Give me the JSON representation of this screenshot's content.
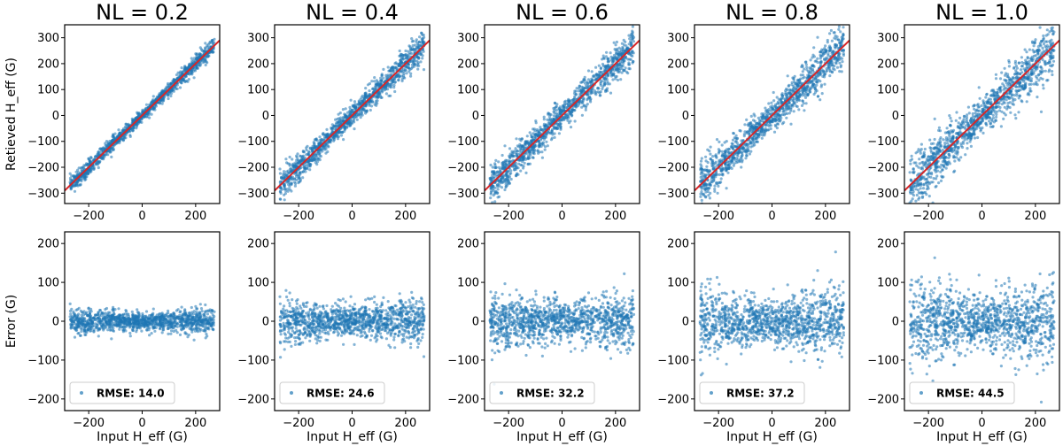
{
  "chart_data": {
    "type": "scatter",
    "figure_title": "",
    "panels": [
      {
        "title": "NL = 0.2",
        "rmse": 14.0,
        "legend": "RMSE: 14.0"
      },
      {
        "title": "NL = 0.4",
        "rmse": 24.6,
        "legend": "RMSE: 24.6"
      },
      {
        "title": "NL = 0.6",
        "rmse": 32.2,
        "legend": "RMSE: 32.2"
      },
      {
        "title": "NL = 0.8",
        "rmse": 37.2,
        "legend": "RMSE: 37.2"
      },
      {
        "title": "NL = 1.0",
        "rmse": 44.5,
        "legend": "RMSE: 44.5"
      }
    ],
    "top_row": {
      "ylabel": "Retieved H_eff (G)",
      "xlim": [
        -290,
        290
      ],
      "ylim": [
        -340,
        350
      ],
      "xticks": [
        -200,
        0,
        200
      ],
      "yticks": [
        -300,
        -200,
        -100,
        0,
        100,
        200,
        300
      ],
      "reference_line": "y = x"
    },
    "bottom_row": {
      "ylabel": "Error (G)",
      "xlabel": "Input  H_eff (G)",
      "xlim": [
        -290,
        290
      ],
      "ylim": [
        -230,
        230
      ],
      "xticks": [
        -200,
        0,
        200
      ],
      "yticks": [
        -200,
        -100,
        0,
        100,
        200
      ]
    },
    "points_per_panel": 1200,
    "x_range": [
      -270,
      270
    ],
    "series_color": "#1f77b4",
    "line_color": "#d62728",
    "legend_position": "lower-left"
  }
}
